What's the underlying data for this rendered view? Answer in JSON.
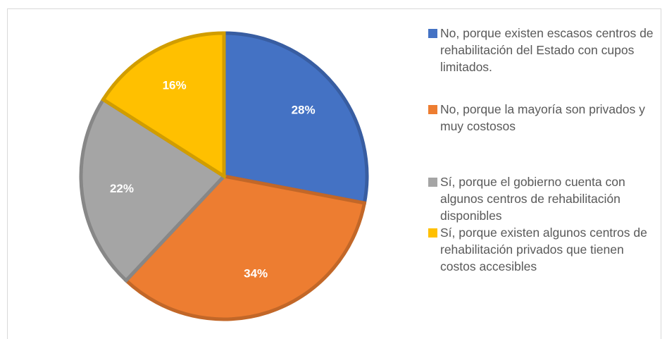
{
  "chart_data": {
    "type": "pie",
    "categories": [
      "No, porque existen escasos centros de rehabilitación del Estado con cupos limitados.",
      "No, porque la mayoría son privados y muy costosos",
      "Sí, porque el gobierno cuenta con algunos centros de rehabilitación disponibles",
      "Sí, porque existen algunos centros de rehabilitación privados que tienen costos accesibles"
    ],
    "values": [
      28,
      34,
      22,
      16
    ],
    "value_labels": [
      "28%",
      "34%",
      "22%",
      "16%"
    ],
    "colors": [
      "#4472c4",
      "#ed7d31",
      "#a5a5a5",
      "#ffc000"
    ],
    "legend": "right"
  }
}
